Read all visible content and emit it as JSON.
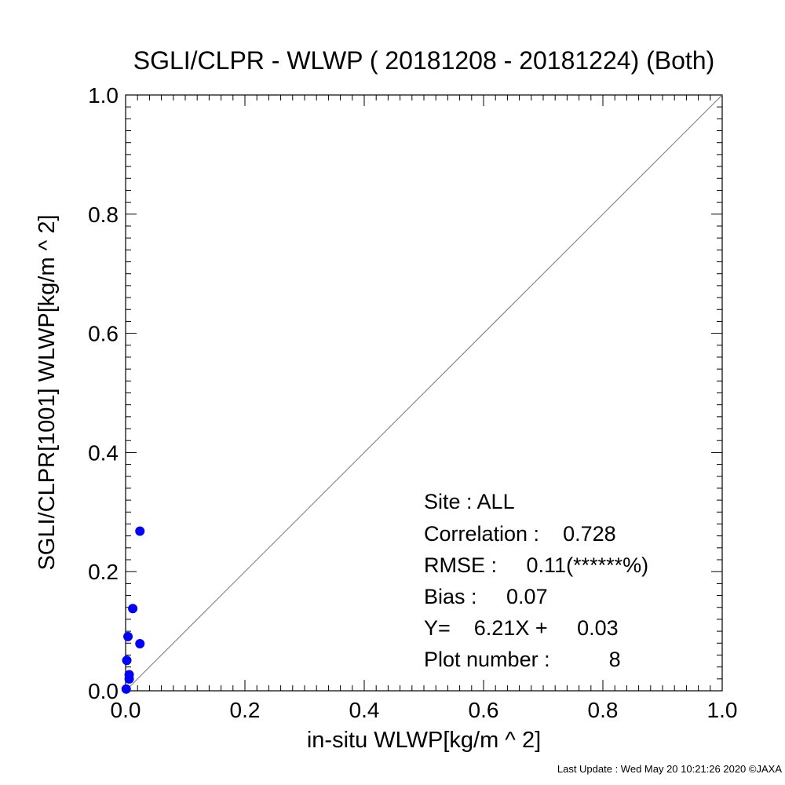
{
  "chart_data": {
    "type": "scatter",
    "title": "SGLI/CLPR - WLWP ( 20181208 - 20181224) (Both)",
    "xlabel": "in-situ WLWP[kg/m ^ 2]",
    "ylabel": "SGLI/CLPR[1001]     WLWP[kg/m ^ 2]",
    "xlim": [
      0.0,
      1.0
    ],
    "ylim": [
      0.0,
      1.0
    ],
    "x_ticks": [
      "0.0",
      "0.2",
      "0.4",
      "0.6",
      "0.8",
      "1.0"
    ],
    "y_ticks": [
      "0.0",
      "0.2",
      "0.4",
      "0.6",
      "0.8",
      "1.0"
    ],
    "reference_line": "1:1",
    "grid": false,
    "point_color": "#0000ff",
    "points": [
      {
        "x": 0.024,
        "y": 0.268
      },
      {
        "x": 0.012,
        "y": 0.138
      },
      {
        "x": 0.004,
        "y": 0.091
      },
      {
        "x": 0.024,
        "y": 0.079
      },
      {
        "x": 0.002,
        "y": 0.051
      },
      {
        "x": 0.006,
        "y": 0.027
      },
      {
        "x": 0.006,
        "y": 0.02
      },
      {
        "x": 0.001,
        "y": 0.003
      }
    ],
    "stats": {
      "site": "Site : ALL",
      "correlation": "Correlation :    0.728",
      "rmse": "RMSE :     0.11(******%)",
      "bias": "Bias :     0.07",
      "regression": "Y=    6.21X +     0.03",
      "plot_number": "Plot number :          8"
    }
  },
  "footer": "Last Update : Wed May 20 10:21:26 2020  ©JAXA"
}
